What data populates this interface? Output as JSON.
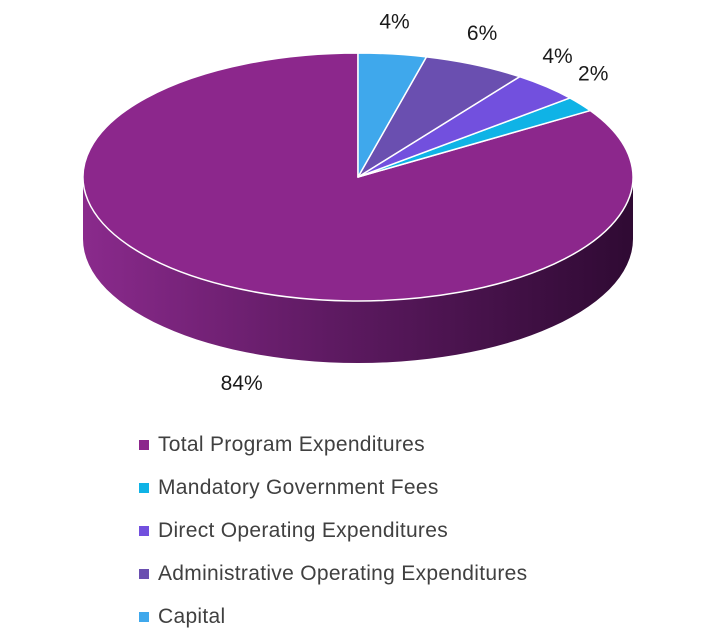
{
  "chart_data": {
    "type": "pie",
    "style": "3d",
    "legend_position": "bottom",
    "start_angle": "12 o'clock",
    "direction": "counter-clockwise",
    "categories": [
      "Total Program Expenditures",
      "Mandatory Government Fees",
      "Direct Operating Expenditures",
      "Administrative Operating Expenditures",
      "Capital"
    ],
    "values": [
      84,
      2,
      4,
      6,
      4
    ],
    "data_labels": [
      "84%",
      "2%",
      "4%",
      "6%",
      "4%"
    ],
    "colors": [
      "#8c278c",
      "#0fb3e6",
      "#7250de",
      "#6a4fb0",
      "#3fa8ec"
    ]
  }
}
